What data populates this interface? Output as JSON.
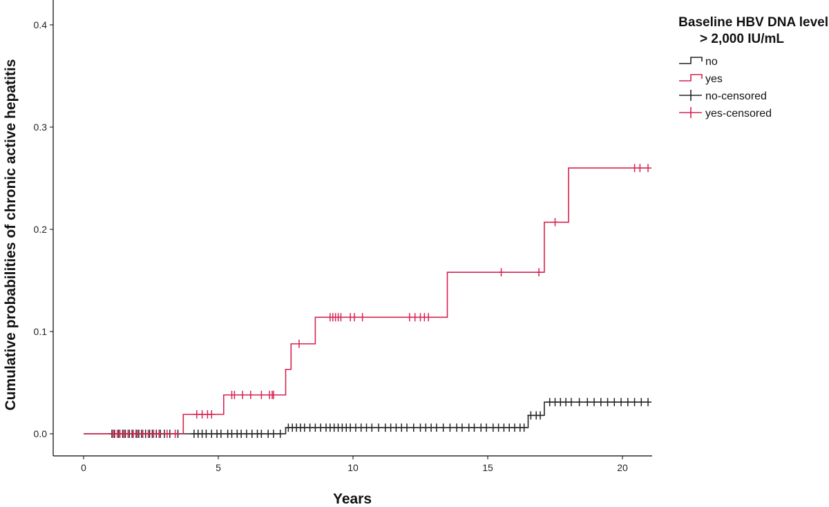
{
  "chart_data": {
    "type": "line",
    "subtype": "kaplan-meier cumulative incidence step plot",
    "xlabel": "Years",
    "ylabel": "Cumulative probabilities of chronic active hepatitis",
    "xlim": [
      -1.1,
      21.1
    ],
    "ylim": [
      -0.022,
      0.42
    ],
    "x_ticks": [
      0,
      5,
      10,
      15,
      20
    ],
    "x_tick_labels": [
      "0",
      "5",
      "10",
      "15",
      "20"
    ],
    "y_ticks": [
      0.0,
      0.1,
      0.2,
      0.3,
      0.4
    ],
    "y_tick_labels": [
      "0.0",
      "0.1",
      "0.2",
      "0.3",
      "0.4"
    ],
    "grid": false,
    "legend": {
      "title_lines": [
        "Baseline HBV DNA level",
        "> 2,000 IU/mL"
      ],
      "placement": "top-right",
      "entries": [
        {
          "label": "no",
          "kind": "step",
          "series": "no"
        },
        {
          "label": "yes",
          "kind": "step",
          "series": "yes"
        },
        {
          "label": "no-censored",
          "kind": "censor",
          "series": "no"
        },
        {
          "label": "yes-censored",
          "kind": "censor",
          "series": "yes"
        }
      ]
    },
    "series": [
      {
        "name": "no",
        "color": "#222222",
        "steps": [
          [
            0,
            0.0
          ],
          [
            7.5,
            0.006
          ],
          [
            16.5,
            0.018
          ],
          [
            17.1,
            0.031
          ]
        ],
        "end_x": 21,
        "censored": [
          [
            1.05,
            0.0
          ],
          [
            1.15,
            0.0
          ],
          [
            1.3,
            0.0
          ],
          [
            1.45,
            0.0
          ],
          [
            1.55,
            0.0
          ],
          [
            1.7,
            0.0
          ],
          [
            1.8,
            0.0
          ],
          [
            1.95,
            0.0
          ],
          [
            2.05,
            0.0
          ],
          [
            2.15,
            0.0
          ],
          [
            2.3,
            0.0
          ],
          [
            2.45,
            0.0
          ],
          [
            2.55,
            0.0
          ],
          [
            2.7,
            0.0
          ],
          [
            2.85,
            0.0
          ],
          [
            3.0,
            0.0
          ],
          [
            3.2,
            0.0
          ],
          [
            3.5,
            0.0
          ],
          [
            4.1,
            0.0
          ],
          [
            4.25,
            0.0
          ],
          [
            4.4,
            0.0
          ],
          [
            4.55,
            0.0
          ],
          [
            4.75,
            0.0
          ],
          [
            4.95,
            0.0
          ],
          [
            5.1,
            0.0
          ],
          [
            5.35,
            0.0
          ],
          [
            5.5,
            0.0
          ],
          [
            5.7,
            0.0
          ],
          [
            5.85,
            0.0
          ],
          [
            6.05,
            0.0
          ],
          [
            6.25,
            0.0
          ],
          [
            6.45,
            0.0
          ],
          [
            6.6,
            0.0
          ],
          [
            6.85,
            0.0
          ],
          [
            7.05,
            0.0
          ],
          [
            7.3,
            0.0
          ],
          [
            7.6,
            0.006
          ],
          [
            7.75,
            0.006
          ],
          [
            7.9,
            0.006
          ],
          [
            8.05,
            0.006
          ],
          [
            8.2,
            0.006
          ],
          [
            8.4,
            0.006
          ],
          [
            8.6,
            0.006
          ],
          [
            8.8,
            0.006
          ],
          [
            9.0,
            0.006
          ],
          [
            9.15,
            0.006
          ],
          [
            9.3,
            0.006
          ],
          [
            9.45,
            0.006
          ],
          [
            9.6,
            0.006
          ],
          [
            9.75,
            0.006
          ],
          [
            9.9,
            0.006
          ],
          [
            10.1,
            0.006
          ],
          [
            10.3,
            0.006
          ],
          [
            10.5,
            0.006
          ],
          [
            10.7,
            0.006
          ],
          [
            10.95,
            0.006
          ],
          [
            11.2,
            0.006
          ],
          [
            11.4,
            0.006
          ],
          [
            11.6,
            0.006
          ],
          [
            11.8,
            0.006
          ],
          [
            12.0,
            0.006
          ],
          [
            12.25,
            0.006
          ],
          [
            12.5,
            0.006
          ],
          [
            12.7,
            0.006
          ],
          [
            12.9,
            0.006
          ],
          [
            13.1,
            0.006
          ],
          [
            13.35,
            0.006
          ],
          [
            13.6,
            0.006
          ],
          [
            13.85,
            0.006
          ],
          [
            14.05,
            0.006
          ],
          [
            14.3,
            0.006
          ],
          [
            14.5,
            0.006
          ],
          [
            14.75,
            0.006
          ],
          [
            14.95,
            0.006
          ],
          [
            15.2,
            0.006
          ],
          [
            15.4,
            0.006
          ],
          [
            15.6,
            0.006
          ],
          [
            15.8,
            0.006
          ],
          [
            16.0,
            0.006
          ],
          [
            16.2,
            0.006
          ],
          [
            16.35,
            0.006
          ],
          [
            16.6,
            0.018
          ],
          [
            16.8,
            0.018
          ],
          [
            16.95,
            0.018
          ],
          [
            17.3,
            0.031
          ],
          [
            17.5,
            0.031
          ],
          [
            17.7,
            0.031
          ],
          [
            17.9,
            0.031
          ],
          [
            18.1,
            0.031
          ],
          [
            18.4,
            0.031
          ],
          [
            18.7,
            0.031
          ],
          [
            18.95,
            0.031
          ],
          [
            19.2,
            0.031
          ],
          [
            19.45,
            0.031
          ],
          [
            19.7,
            0.031
          ],
          [
            19.95,
            0.031
          ],
          [
            20.2,
            0.031
          ],
          [
            20.45,
            0.031
          ],
          [
            20.7,
            0.031
          ],
          [
            20.95,
            0.031
          ]
        ]
      },
      {
        "name": "yes",
        "color": "#d6204e",
        "steps": [
          [
            0,
            0.0
          ],
          [
            3.7,
            0.019
          ],
          [
            5.2,
            0.038
          ],
          [
            7.5,
            0.063
          ],
          [
            7.7,
            0.088
          ],
          [
            8.6,
            0.114
          ],
          [
            13.5,
            0.158
          ],
          [
            17.1,
            0.207
          ],
          [
            18.0,
            0.26
          ]
        ],
        "end_x": 21,
        "censored": [
          [
            1.1,
            0.0
          ],
          [
            1.25,
            0.0
          ],
          [
            1.35,
            0.0
          ],
          [
            1.5,
            0.0
          ],
          [
            1.65,
            0.0
          ],
          [
            1.85,
            0.0
          ],
          [
            2.0,
            0.0
          ],
          [
            2.2,
            0.0
          ],
          [
            2.4,
            0.0
          ],
          [
            2.6,
            0.0
          ],
          [
            2.8,
            0.0
          ],
          [
            3.1,
            0.0
          ],
          [
            3.4,
            0.0
          ],
          [
            4.2,
            0.019
          ],
          [
            4.4,
            0.019
          ],
          [
            4.6,
            0.019
          ],
          [
            4.75,
            0.019
          ],
          [
            5.5,
            0.038
          ],
          [
            5.6,
            0.038
          ],
          [
            5.9,
            0.038
          ],
          [
            6.2,
            0.038
          ],
          [
            6.6,
            0.038
          ],
          [
            6.9,
            0.038
          ],
          [
            7.0,
            0.038
          ],
          [
            7.05,
            0.038
          ],
          [
            8.0,
            0.088
          ],
          [
            9.15,
            0.114
          ],
          [
            9.25,
            0.114
          ],
          [
            9.35,
            0.114
          ],
          [
            9.45,
            0.114
          ],
          [
            9.55,
            0.114
          ],
          [
            9.9,
            0.114
          ],
          [
            10.05,
            0.114
          ],
          [
            10.35,
            0.114
          ],
          [
            12.1,
            0.114
          ],
          [
            12.3,
            0.114
          ],
          [
            12.5,
            0.114
          ],
          [
            12.65,
            0.114
          ],
          [
            12.8,
            0.114
          ],
          [
            15.5,
            0.158
          ],
          [
            16.9,
            0.158
          ],
          [
            17.5,
            0.207
          ],
          [
            20.45,
            0.26
          ],
          [
            20.65,
            0.26
          ],
          [
            20.95,
            0.26
          ]
        ]
      }
    ]
  }
}
